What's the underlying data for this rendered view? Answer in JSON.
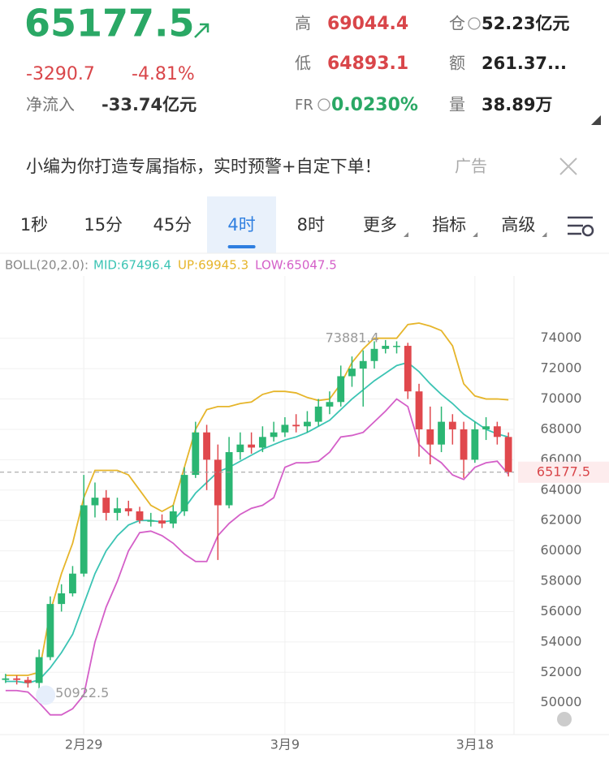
{
  "header": {
    "price": "65177.5",
    "change": "-3290.7",
    "change_pct": "-4.81%",
    "net_inflow_label": "净流入",
    "net_inflow": "-33.74亿元",
    "stats": [
      {
        "label": "高",
        "value": "69044.4"
      },
      {
        "label": "低",
        "value": "64893.1"
      },
      {
        "label": "FR",
        "value": "0.0230%"
      },
      {
        "label": "仓",
        "value": "52.23亿元"
      },
      {
        "label": "额",
        "value": "261.37..."
      },
      {
        "label": "量",
        "value": "38.89万"
      }
    ]
  },
  "ad": {
    "text": "小编为你打造专属指标，实时预警+自定下单！",
    "tag": "广告"
  },
  "tabs": [
    "1秒",
    "15分",
    "45分",
    "4时",
    "8时",
    "更多",
    "指标",
    "高级"
  ],
  "active_tab": 3,
  "chart_data": {
    "type": "candlestick",
    "indicator": "BOLL(20,2.0):",
    "categories": [
      null,
      null,
      null,
      null,
      null,
      null,
      null,
      "2月29",
      null,
      null,
      null,
      null,
      null,
      null,
      null,
      null,
      null,
      null,
      null,
      null,
      null,
      null,
      null,
      null,
      null,
      "3月9",
      null,
      null,
      null,
      null,
      null,
      null,
      null,
      null,
      null,
      null,
      null,
      null,
      null,
      null,
      null,
      null,
      "3月18",
      null,
      null,
      null
    ],
    "open": [
      51500,
      51600,
      51500,
      51300,
      53000,
      56500,
      57200,
      58500,
      63000,
      63500,
      62500,
      62800,
      62600,
      62000,
      62000,
      61800,
      62600,
      65000,
      67800,
      66000,
      63000,
      66500,
      67000,
      66800,
      67500,
      67800,
      68300,
      68200,
      68500,
      69500,
      69800,
      71500,
      72000,
      72500,
      73300,
      73500,
      73500,
      70500,
      68000,
      67000,
      68500,
      68000,
      66000,
      68000,
      68200,
      67500
    ],
    "high": [
      51900,
      51800,
      51700,
      53500,
      57000,
      57800,
      59000,
      65000,
      64500,
      64000,
      63500,
      63300,
      62900,
      62500,
      62400,
      63000,
      65500,
      68500,
      68300,
      67000,
      67500,
      67800,
      67800,
      68200,
      68500,
      68800,
      69000,
      69200,
      70000,
      70500,
      72200,
      72800,
      73200,
      73800,
      73881.4,
      73800,
      73700,
      71000,
      69500,
      69500,
      69000,
      68500,
      68500,
      68800,
      68500,
      67800
    ],
    "low": [
      51300,
      51200,
      51000,
      50922.5,
      52800,
      56000,
      57000,
      58300,
      62200,
      62000,
      62000,
      62300,
      61800,
      61600,
      61500,
      61500,
      62300,
      64800,
      64000,
      59400,
      62800,
      66000,
      66400,
      66500,
      67200,
      67500,
      67800,
      67800,
      68200,
      69000,
      69500,
      70800,
      69500,
      72000,
      73000,
      73000,
      70000,
      66200,
      65700,
      66500,
      67000,
      64800,
      65800,
      67300,
      67000,
      64900
    ],
    "close": [
      51600,
      51500,
      51300,
      53000,
      56500,
      57200,
      58500,
      63000,
      63500,
      62500,
      62800,
      62600,
      62000,
      62000,
      61800,
      62600,
      65000,
      67800,
      66000,
      63000,
      66500,
      67000,
      66800,
      67500,
      67800,
      68300,
      68200,
      68500,
      69500,
      69800,
      71500,
      72000,
      72500,
      73300,
      73500,
      73500,
      70500,
      68000,
      67000,
      68500,
      68000,
      66000,
      68000,
      68200,
      67500,
      65177.5
    ],
    "up_color": "#2bb673",
    "down_color": "#e0484d",
    "series": [
      {
        "label": "MID:67496.4",
        "color": "#3cc4b4",
        "values": [
          51400,
          51400,
          51300,
          51500,
          52300,
          53300,
          54500,
          56500,
          58500,
          60000,
          61000,
          61700,
          62000,
          62000,
          61900,
          62000,
          62800,
          63800,
          64500,
          65200,
          65500,
          65900,
          66300,
          66700,
          67000,
          67300,
          67500,
          67800,
          68200,
          68600,
          69300,
          70000,
          70600,
          71200,
          71700,
          72200,
          72400,
          71800,
          71000,
          70300,
          69700,
          69000,
          68500,
          68000,
          67700,
          67496.4
        ]
      },
      {
        "label": "UP:69945.3",
        "color": "#e6b52a",
        "values": [
          51800,
          51800,
          51800,
          52000,
          56000,
          58500,
          60500,
          63500,
          65300,
          65300,
          65300,
          65000,
          64000,
          63000,
          62600,
          63000,
          65500,
          68000,
          69300,
          69500,
          69500,
          69700,
          69800,
          70300,
          70500,
          70500,
          70400,
          70100,
          69900,
          70000,
          71000,
          72400,
          73300,
          74000,
          74000,
          74000,
          74900,
          75000,
          74800,
          74500,
          73500,
          71000,
          70200,
          70000,
          70000,
          69945.3
        ]
      },
      {
        "label": "LOW:65047.5",
        "color": "#d45fc8",
        "values": [
          50800,
          50800,
          50700,
          50000,
          49200,
          49200,
          49600,
          50500,
          54000,
          56300,
          58000,
          60000,
          61200,
          61300,
          61000,
          60500,
          59800,
          59300,
          59300,
          61000,
          61800,
          62400,
          62800,
          63000,
          63500,
          65500,
          65800,
          65800,
          65900,
          66500,
          67500,
          67600,
          67800,
          68500,
          69200,
          70000,
          69500,
          67000,
          66300,
          65800,
          65000,
          64700,
          65500,
          65800,
          65900,
          65047.5
        ]
      }
    ],
    "ylim": [
      47900,
      78100
    ],
    "yticks": [
      50000,
      52000,
      54000,
      56000,
      58000,
      60000,
      62000,
      64000,
      66000,
      68000,
      70000,
      72000,
      74000
    ],
    "max_label": "73881.4",
    "min_label": "50922.5",
    "last_price": 65177.5,
    "grid": true
  }
}
